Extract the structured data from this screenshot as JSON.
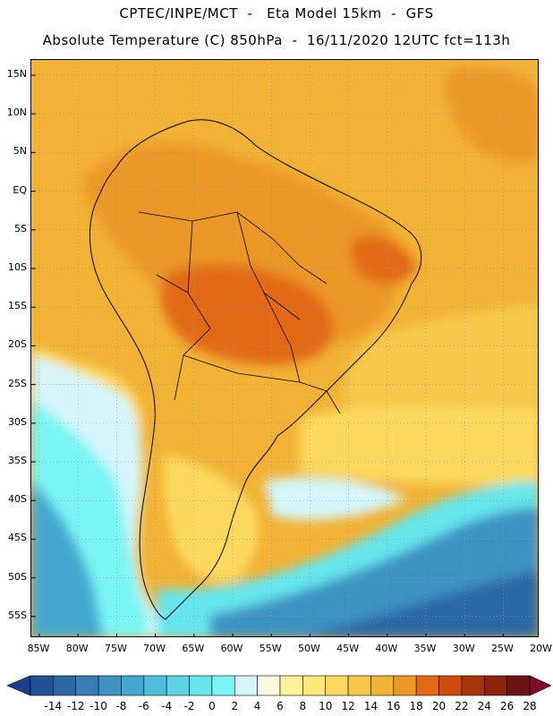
{
  "header": {
    "line1": "CPTEC/INPE/MCT  -   Eta Model 15km  -  GFS",
    "line2": "Absolute Temperature (C) 850hPa  -  16/11/2020 12UTC fct=113h"
  },
  "map": {
    "region": "South America",
    "lat_labels": [
      "15N",
      "10N",
      "5N",
      "EQ",
      "5S",
      "10S",
      "15S",
      "20S",
      "25S",
      "30S",
      "35S",
      "40S",
      "45S",
      "50S",
      "55S"
    ],
    "lon_labels": [
      "85W",
      "80W",
      "75W",
      "70W",
      "65W",
      "60W",
      "55W",
      "50W",
      "45W",
      "40W",
      "35W",
      "30W",
      "25W",
      "20W"
    ],
    "field": "Absolute Temperature (C) at 850hPa"
  },
  "colorbar": {
    "labels": [
      "-14",
      "-12",
      "-10",
      "-8",
      "-6",
      "-4",
      "-2",
      "0",
      "2",
      "4",
      "6",
      "8",
      "10",
      "12",
      "14",
      "16",
      "18",
      "20",
      "22",
      "24",
      "26",
      "28"
    ],
    "colors": [
      "#1c3d8c",
      "#1f5296",
      "#2a67a5",
      "#3a7cb5",
      "#3d92c4",
      "#42a8d0",
      "#4cbfdb",
      "#5ad3e4",
      "#66e6ec",
      "#7af5f5",
      "#d4f6fa",
      "#fff8e0",
      "#fff39a",
      "#ffe87a",
      "#fcda5d",
      "#f7c84a",
      "#f2b234",
      "#ec9826",
      "#e26a12",
      "#cf4a0c",
      "#a8340a",
      "#8c220c",
      "#6a1414",
      "#7d0c2b"
    ]
  }
}
